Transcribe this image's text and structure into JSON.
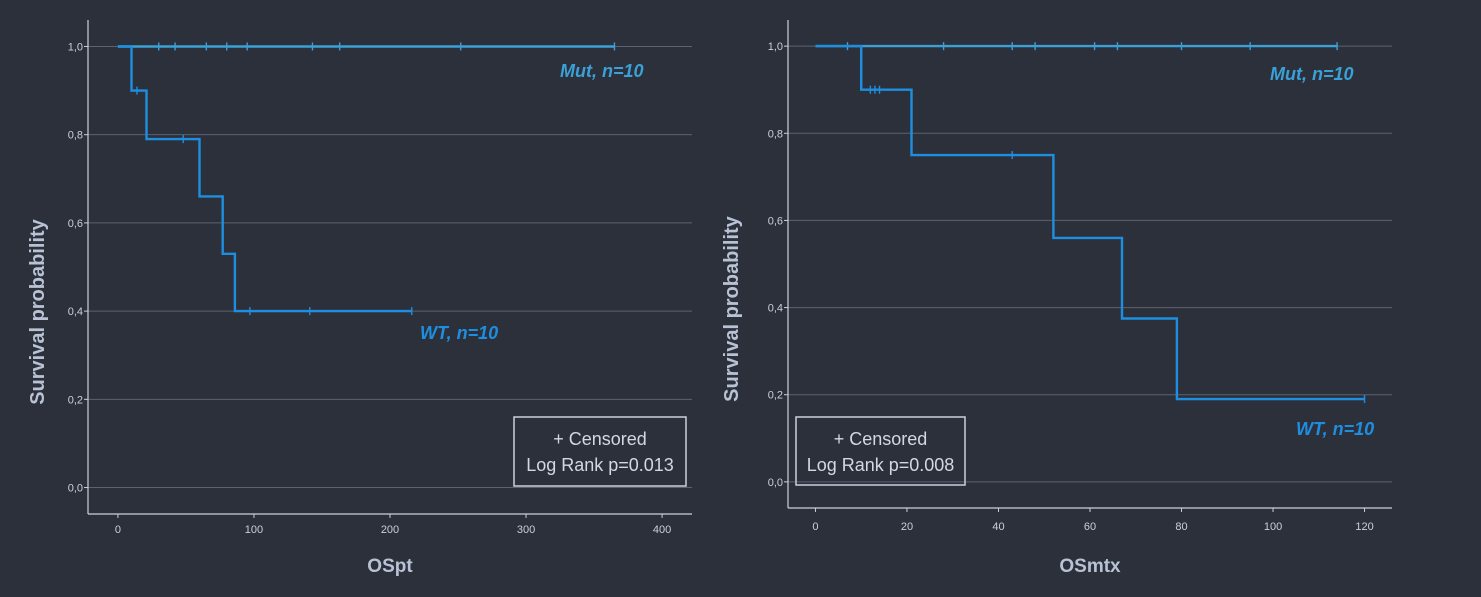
{
  "colors": {
    "background": "#2b303b",
    "axis": "#c9d0dc",
    "grid": "#5b6272",
    "mut": "#3aa0d6",
    "wt": "#1e8fe0"
  },
  "chart_data": [
    {
      "type": "line",
      "step": true,
      "xlabel": "OSpt",
      "ylabel": "Survival probability",
      "xlim": [
        -22,
        422
      ],
      "ylim": [
        -0.06,
        1.06
      ],
      "xticks": [
        0,
        100,
        200,
        300,
        400
      ],
      "xtick_labels": [
        "0",
        "100",
        "200",
        "300",
        "400"
      ],
      "yticks": [
        0.0,
        0.2,
        0.4,
        0.6,
        0.8,
        1.0
      ],
      "ytick_labels": [
        "0,0",
        "0,2",
        "0,4",
        "0,6",
        "0,8",
        "1,0"
      ],
      "grid": "horizontal",
      "series": [
        {
          "name": "Mut, n=10",
          "color": "#3aa0d6",
          "steps": [
            [
              0,
              1.0
            ],
            [
              365,
              1.0
            ]
          ],
          "censored": [
            [
              30,
              1.0
            ],
            [
              42,
              1.0
            ],
            [
              65,
              1.0
            ],
            [
              80,
              1.0
            ],
            [
              95,
              1.0
            ],
            [
              143,
              1.0
            ],
            [
              163,
              1.0
            ],
            [
              252,
              1.0
            ],
            [
              365,
              1.0
            ]
          ]
        },
        {
          "name": "WT, n=10",
          "color": "#1e8fe0",
          "steps": [
            [
              0,
              1.0
            ],
            [
              10,
              1.0
            ],
            [
              10,
              0.9
            ],
            [
              21,
              0.9
            ],
            [
              21,
              0.79
            ],
            [
              60,
              0.79
            ],
            [
              60,
              0.66
            ],
            [
              77,
              0.66
            ],
            [
              77,
              0.53
            ],
            [
              86,
              0.53
            ],
            [
              86,
              0.4
            ],
            [
              216,
              0.4
            ]
          ],
          "censored": [
            [
              14,
              0.9
            ],
            [
              48,
              0.79
            ],
            [
              97,
              0.4
            ],
            [
              141,
              0.4
            ],
            [
              216,
              0.4
            ]
          ]
        }
      ],
      "legend": {
        "line1": "+ Censored",
        "line2": "Log Rank p=0.013"
      }
    },
    {
      "type": "line",
      "step": true,
      "xlabel": "OSmtx",
      "ylabel": "Survival probability",
      "xlim": [
        -6,
        126
      ],
      "ylim": [
        -0.06,
        1.06
      ],
      "xticks": [
        0,
        20,
        40,
        60,
        80,
        100,
        120
      ],
      "xtick_labels": [
        "0",
        "20",
        "40",
        "60",
        "80",
        "100",
        "120"
      ],
      "yticks": [
        0.0,
        0.2,
        0.4,
        0.6,
        0.8,
        1.0
      ],
      "ytick_labels": [
        "0,0",
        "0,2",
        "0,4",
        "0,6",
        "0,8",
        "1,0"
      ],
      "grid": "horizontal",
      "series": [
        {
          "name": "Mut, n=10",
          "color": "#3aa0d6",
          "steps": [
            [
              0,
              1.0
            ],
            [
              114,
              1.0
            ]
          ],
          "censored": [
            [
              7,
              1.0
            ],
            [
              28,
              1.0
            ],
            [
              43,
              1.0
            ],
            [
              48,
              1.0
            ],
            [
              61,
              1.0
            ],
            [
              66,
              1.0
            ],
            [
              80,
              1.0
            ],
            [
              95,
              1.0
            ],
            [
              114,
              1.0
            ]
          ]
        },
        {
          "name": "WT, n=10",
          "color": "#1e8fe0",
          "steps": [
            [
              0,
              1.0
            ],
            [
              10,
              1.0
            ],
            [
              10,
              0.9
            ],
            [
              21,
              0.9
            ],
            [
              21,
              0.75
            ],
            [
              52,
              0.75
            ],
            [
              52,
              0.56
            ],
            [
              67,
              0.56
            ],
            [
              67,
              0.375
            ],
            [
              79,
              0.375
            ],
            [
              79,
              0.19
            ],
            [
              120,
              0.19
            ]
          ],
          "censored": [
            [
              12,
              0.9
            ],
            [
              13,
              0.9
            ],
            [
              14,
              0.9
            ],
            [
              43,
              0.75
            ],
            [
              120,
              0.19
            ]
          ]
        }
      ],
      "legend": {
        "line1": "+ Censored",
        "line2": "Log Rank p=0.008"
      }
    }
  ]
}
